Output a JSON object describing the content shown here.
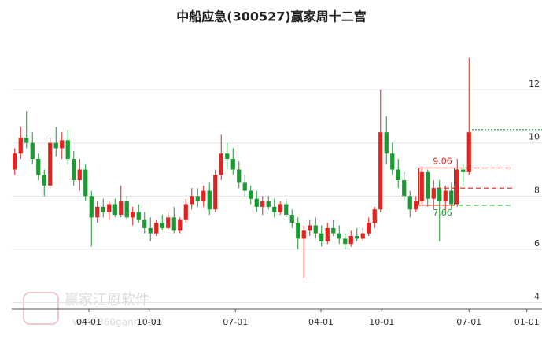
{
  "chart_data": {
    "type": "candlestick",
    "title": "中船应急(300527)赢家周十二宫",
    "watermark": "赢家江恩软件",
    "watermark_url": "www.360gann.com",
    "up_color": "#e0241f",
    "down_color": "#1a9b32",
    "grid": true,
    "ylim": [
      3.75,
      13.6
    ],
    "yticks": [
      4,
      6,
      8,
      10,
      12
    ],
    "xlim": [
      0,
      90
    ],
    "xticks": [
      {
        "value": 13.07,
        "label": "04-01"
      },
      {
        "value": 23.3,
        "label": "10-01"
      },
      {
        "value": 37.9,
        "label": "07-01"
      },
      {
        "value": 52.4,
        "label": "04-01"
      },
      {
        "value": 62.7,
        "label": "10-01"
      },
      {
        "value": 77.5,
        "label": "07-01"
      },
      {
        "value": 87.3,
        "label": "01-01"
      }
    ],
    "levels": [
      {
        "value": 9.06,
        "label": "9.06",
        "color": "#e0241f"
      },
      {
        "value": 7.66,
        "label": "7.66",
        "color": "#1a9b32"
      }
    ],
    "lines": [
      {
        "value": 8.3,
        "color": "#e0241f"
      },
      {
        "value": 10.5,
        "color": "#1a9b32"
      }
    ],
    "candles": [
      [
        9.0,
        9.8,
        8.8,
        9.6
      ],
      [
        9.6,
        10.6,
        9.4,
        10.2
      ],
      [
        10.2,
        11.2,
        9.8,
        10.0
      ],
      [
        10.0,
        10.4,
        9.2,
        9.4
      ],
      [
        9.4,
        9.6,
        8.6,
        8.8
      ],
      [
        8.8,
        9.0,
        8.0,
        8.4
      ],
      [
        8.4,
        10.2,
        8.3,
        10.0
      ],
      [
        10.0,
        10.6,
        9.5,
        9.8
      ],
      [
        9.8,
        10.4,
        9.4,
        10.1
      ],
      [
        10.1,
        10.5,
        9.2,
        9.4
      ],
      [
        9.4,
        9.7,
        8.4,
        8.6
      ],
      [
        8.6,
        9.4,
        8.2,
        9.0
      ],
      [
        9.0,
        9.2,
        7.8,
        8.0
      ],
      [
        8.0,
        8.2,
        6.1,
        7.2
      ],
      [
        7.2,
        7.8,
        7.0,
        7.6
      ],
      [
        7.6,
        7.9,
        7.2,
        7.4
      ],
      [
        7.4,
        7.8,
        7.1,
        7.7
      ],
      [
        7.7,
        7.9,
        7.2,
        7.3
      ],
      [
        7.3,
        8.4,
        7.2,
        7.8
      ],
      [
        7.8,
        8.0,
        7.1,
        7.2
      ],
      [
        7.2,
        7.6,
        6.9,
        7.4
      ],
      [
        7.4,
        7.7,
        7.0,
        7.1
      ],
      [
        7.1,
        7.4,
        6.6,
        6.8
      ],
      [
        6.8,
        7.2,
        6.3,
        6.6
      ],
      [
        6.6,
        7.1,
        6.5,
        7.0
      ],
      [
        7.0,
        7.3,
        6.7,
        6.8
      ],
      [
        6.8,
        7.4,
        6.7,
        7.2
      ],
      [
        7.2,
        7.6,
        6.6,
        6.7
      ],
      [
        6.7,
        7.2,
        6.6,
        7.1
      ],
      [
        7.1,
        7.9,
        7.0,
        7.7
      ],
      [
        7.7,
        8.3,
        7.5,
        8.0
      ],
      [
        8.0,
        8.3,
        7.6,
        7.8
      ],
      [
        7.8,
        8.4,
        7.6,
        8.2
      ],
      [
        8.2,
        8.5,
        7.3,
        7.5
      ],
      [
        7.5,
        9.0,
        7.4,
        8.8
      ],
      [
        8.8,
        10.3,
        8.6,
        9.6
      ],
      [
        9.6,
        10.0,
        9.0,
        9.4
      ],
      [
        9.4,
        9.8,
        8.8,
        9.0
      ],
      [
        9.0,
        9.3,
        8.3,
        8.5
      ],
      [
        8.5,
        8.8,
        8.0,
        8.2
      ],
      [
        8.2,
        8.4,
        7.7,
        7.9
      ],
      [
        7.9,
        8.2,
        7.4,
        7.6
      ],
      [
        7.6,
        8.0,
        7.3,
        7.8
      ],
      [
        7.8,
        8.0,
        7.5,
        7.6
      ],
      [
        7.6,
        7.9,
        7.2,
        7.4
      ],
      [
        7.4,
        7.8,
        7.3,
        7.7
      ],
      [
        7.7,
        7.9,
        7.2,
        7.3
      ],
      [
        7.3,
        7.5,
        6.8,
        7.0
      ],
      [
        7.0,
        7.2,
        6.0,
        6.4
      ],
      [
        6.4,
        6.9,
        4.9,
        6.7
      ],
      [
        6.7,
        7.1,
        6.5,
        6.9
      ],
      [
        6.9,
        7.2,
        6.4,
        6.6
      ],
      [
        6.6,
        6.9,
        6.1,
        6.3
      ],
      [
        6.3,
        7.0,
        6.2,
        6.8
      ],
      [
        6.8,
        7.1,
        6.5,
        6.6
      ],
      [
        6.6,
        6.9,
        6.2,
        6.4
      ],
      [
        6.4,
        6.6,
        6.0,
        6.2
      ],
      [
        6.2,
        6.7,
        6.1,
        6.5
      ],
      [
        6.5,
        6.8,
        6.3,
        6.4
      ],
      [
        6.4,
        6.8,
        6.3,
        6.6
      ],
      [
        6.6,
        7.2,
        6.5,
        7.0
      ],
      [
        7.0,
        7.6,
        6.8,
        7.5
      ],
      [
        7.5,
        12.0,
        7.4,
        10.4
      ],
      [
        10.4,
        11.0,
        9.2,
        9.6
      ],
      [
        9.6,
        10.0,
        8.8,
        9.0
      ],
      [
        9.0,
        9.4,
        8.3,
        8.6
      ],
      [
        8.6,
        8.9,
        7.8,
        8.0
      ],
      [
        8.0,
        8.2,
        7.2,
        7.5
      ],
      [
        7.5,
        8.0,
        7.4,
        7.8
      ],
      [
        7.8,
        9.1,
        7.7,
        8.9
      ],
      [
        8.9,
        9.0,
        7.6,
        7.9
      ],
      [
        7.9,
        8.6,
        7.5,
        8.3
      ],
      [
        8.3,
        8.6,
        6.3,
        7.8
      ],
      [
        7.8,
        8.4,
        7.4,
        8.2
      ],
      [
        8.2,
        8.5,
        7.5,
        7.7
      ],
      [
        7.7,
        9.4,
        7.6,
        9.0
      ],
      [
        9.0,
        9.2,
        8.4,
        8.9
      ],
      [
        8.9,
        13.2,
        8.8,
        10.4
      ]
    ]
  }
}
